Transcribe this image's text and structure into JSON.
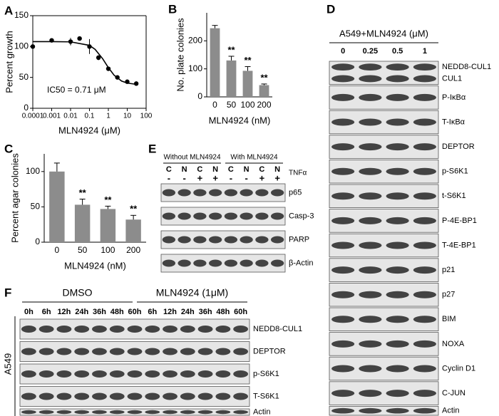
{
  "chart_data": [
    {
      "panel": "A",
      "type": "scatter",
      "xlabel": "MLN4924 (μM)",
      "ylabel": "Percent growth",
      "annotation": "IC50 = 0.71 μM",
      "xscale": "log",
      "xlim": [
        0.0001,
        100
      ],
      "xticks": [
        0.0001,
        0.001,
        0.01,
        0.1,
        1,
        10,
        100
      ],
      "ylim": [
        0,
        150
      ],
      "yticks": [
        0,
        50,
        100,
        150
      ],
      "color": "#000000",
      "x": [
        0.0001,
        0.001,
        0.01,
        0.03,
        0.1,
        0.3,
        1,
        3,
        10,
        30
      ],
      "values": [
        100,
        110,
        108,
        113,
        100,
        82,
        64,
        50,
        43,
        40
      ],
      "errors": [
        3,
        2,
        6,
        3,
        12,
        4,
        3,
        2,
        1,
        1
      ],
      "fit": {
        "x": [
          0.0001,
          0.001,
          0.01,
          0.1,
          0.2,
          0.5,
          1,
          2,
          5,
          10,
          30
        ],
        "values": [
          108,
          108,
          107.6,
          101.9,
          95.4,
          80.3,
          65.9,
          53.7,
          44.1,
          40.8,
          38.8
        ]
      }
    },
    {
      "panel": "B",
      "type": "bar",
      "xlabel": "MLN4924 (nM)",
      "ylabel": "No. plate colonies",
      "color": "#8c8c8c",
      "categories": [
        "0",
        "50",
        "100",
        "200"
      ],
      "values": [
        245,
        130,
        93,
        42
      ],
      "errors": [
        10,
        15,
        15,
        4
      ],
      "significance": [
        null,
        "**",
        "**",
        "**"
      ],
      "ylim": [
        0,
        300
      ],
      "yticks": [
        0,
        100,
        200
      ]
    },
    {
      "panel": "C",
      "type": "bar",
      "xlabel": "MLN4924 (nM)",
      "ylabel": "Percent agar colonies",
      "color": "#8c8c8c",
      "categories": [
        "0",
        "50",
        "100",
        "200"
      ],
      "values": [
        100,
        53,
        47,
        32
      ],
      "errors": [
        12,
        8,
        4,
        6
      ],
      "significance": [
        null,
        "**",
        "**",
        "**"
      ],
      "ylim": [
        0,
        125
      ],
      "yticks": [
        0,
        50,
        100
      ]
    }
  ],
  "blots": [
    {
      "panel": "D",
      "title": "A549+MLN4924 (μM)",
      "lanes": [
        "0",
        "0.25",
        "0.5",
        "1"
      ],
      "strips": [
        {
          "labels": [
            "NEDD8-CUL1",
            "CUL1"
          ]
        },
        {
          "labels": [
            "P-IκBα"
          ]
        },
        {
          "labels": [
            "T-IκBα"
          ]
        },
        {
          "labels": [
            "DEPTOR"
          ]
        },
        {
          "labels": [
            "p-S6K1"
          ]
        },
        {
          "labels": [
            "t-S6K1"
          ]
        },
        {
          "labels": [
            "P-4E-BP1"
          ]
        },
        {
          "labels": [
            "T-4E-BP1"
          ]
        },
        {
          "labels": [
            "p21"
          ]
        },
        {
          "labels": [
            "p27"
          ]
        },
        {
          "labels": [
            "BIM"
          ]
        },
        {
          "labels": [
            "NOXA"
          ]
        },
        {
          "labels": [
            "Cyclin D1"
          ]
        },
        {
          "labels": [
            "C-JUN"
          ]
        },
        {
          "labels": [
            "Actin"
          ]
        }
      ]
    },
    {
      "panel": "E",
      "groups": [
        "Without MLN4924",
        "With MLN4924"
      ],
      "lanes": [
        "C",
        "N",
        "C",
        "N",
        "C",
        "N",
        "C",
        "N"
      ],
      "treatment": {
        "label": "TNFα",
        "signs": [
          "-",
          "-",
          "+",
          "+",
          "-",
          "-",
          "+",
          "+"
        ]
      },
      "strips": [
        {
          "labels": [
            "p65"
          ]
        },
        {
          "labels": [
            "Casp-3"
          ]
        },
        {
          "labels": [
            "PARP"
          ]
        },
        {
          "labels": [
            "β-Actin"
          ]
        }
      ]
    },
    {
      "panel": "F",
      "groups": [
        "DMSO",
        "MLN4924 (1μM)"
      ],
      "cell_line": "A549",
      "lanes": [
        "0h",
        "6h",
        "12h",
        "24h",
        "36h",
        "48h",
        "60h",
        "6h",
        "12h",
        "24h",
        "36h",
        "48h",
        "60h"
      ],
      "strips": [
        {
          "labels": [
            "NEDD8-CUL1"
          ]
        },
        {
          "labels": [
            "DEPTOR"
          ]
        },
        {
          "labels": [
            "p-S6K1"
          ]
        },
        {
          "labels": [
            "T-S6K1"
          ]
        },
        {
          "labels": [
            "Actin"
          ]
        }
      ]
    }
  ]
}
